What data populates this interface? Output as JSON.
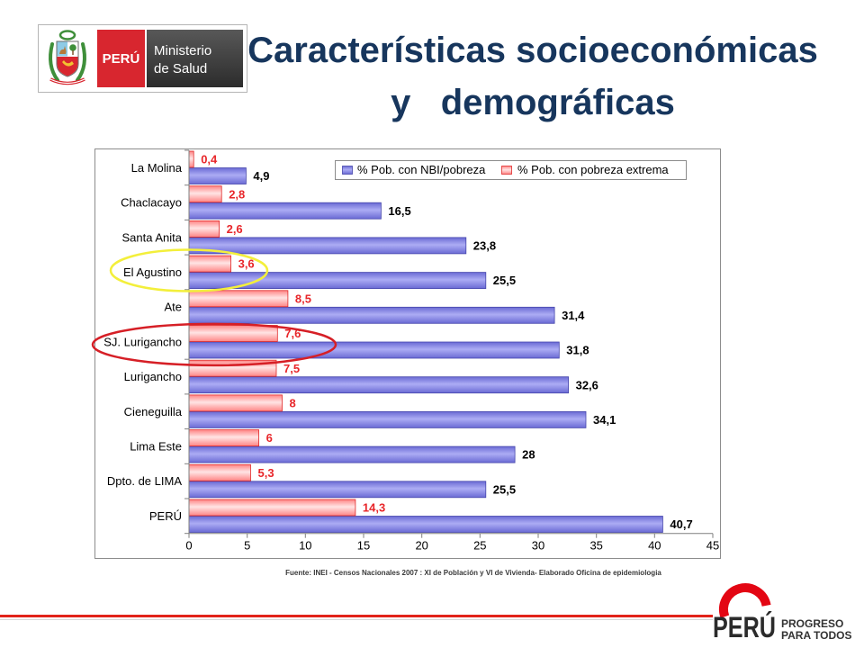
{
  "header": {
    "logo": {
      "emblem_icon": "coat-of-arms-icon",
      "country": "PERÚ",
      "ministry_line1": "Ministerio",
      "ministry_line2": "de Salud",
      "country_color": "#d8262f",
      "ministry_color": "#3a3a3a"
    },
    "title_line1": "Características socioeconómicas",
    "title_line2": "y   demográficas",
    "title_color": "#17365d"
  },
  "chart_data": {
    "type": "bar",
    "orientation": "horizontal",
    "categories": [
      "La Molina",
      "Chaclacayo",
      "Santa Anita",
      "El Agustino",
      "Ate",
      "SJ. Lurigancho",
      "Lurigancho",
      "Cieneguilla",
      "Lima Este",
      "Dpto. de LIMA",
      "PERÚ"
    ],
    "series": [
      {
        "name": "% Pob. con NBI/pobreza",
        "values": [
          4.9,
          16.5,
          23.8,
          25.5,
          31.4,
          31.8,
          32.6,
          34.1,
          28,
          25.5,
          40.7
        ],
        "labels": [
          "4,9",
          "16,5",
          "23,8",
          "25,5",
          "31,4",
          "31,8",
          "32,6",
          "34,1",
          "28",
          "25,5",
          "40,7"
        ],
        "color": "#6a6ad4",
        "label_color": "#000000"
      },
      {
        "name": "% Pob. con pobreza extrema",
        "values": [
          0.4,
          2.8,
          2.6,
          3.6,
          8.5,
          7.6,
          7.5,
          8,
          6,
          5.3,
          14.3
        ],
        "labels": [
          "0,4",
          "2,8",
          "2,6",
          "3,6",
          "8,5",
          "7,6",
          "7,5",
          "8",
          "6",
          "5,3",
          "14,3"
        ],
        "color": "#ff8585",
        "label_color": "#e8262a"
      }
    ],
    "xlim": [
      0,
      45
    ],
    "xticks": [
      0,
      5,
      10,
      15,
      20,
      25,
      30,
      35,
      40,
      45
    ],
    "grid": false,
    "legend_position": "top-right",
    "highlights": [
      {
        "category_index": 3,
        "color": "#f3ef3b"
      },
      {
        "category_index": 5,
        "color": "#d61f26"
      }
    ]
  },
  "footer": {
    "source": "Fuente: INEI - Censos Nacionales 2007 : XI de Población y VI de Vivienda- Elaborado Oficina de epidemiologia",
    "brand_icon": "marca-peru-swirl-icon",
    "brand_name": "PERÚ",
    "brand_tagline_line1": "PROGRESO",
    "brand_tagline_line2": "PARA TODOS",
    "rule_color": "#e2231a"
  }
}
